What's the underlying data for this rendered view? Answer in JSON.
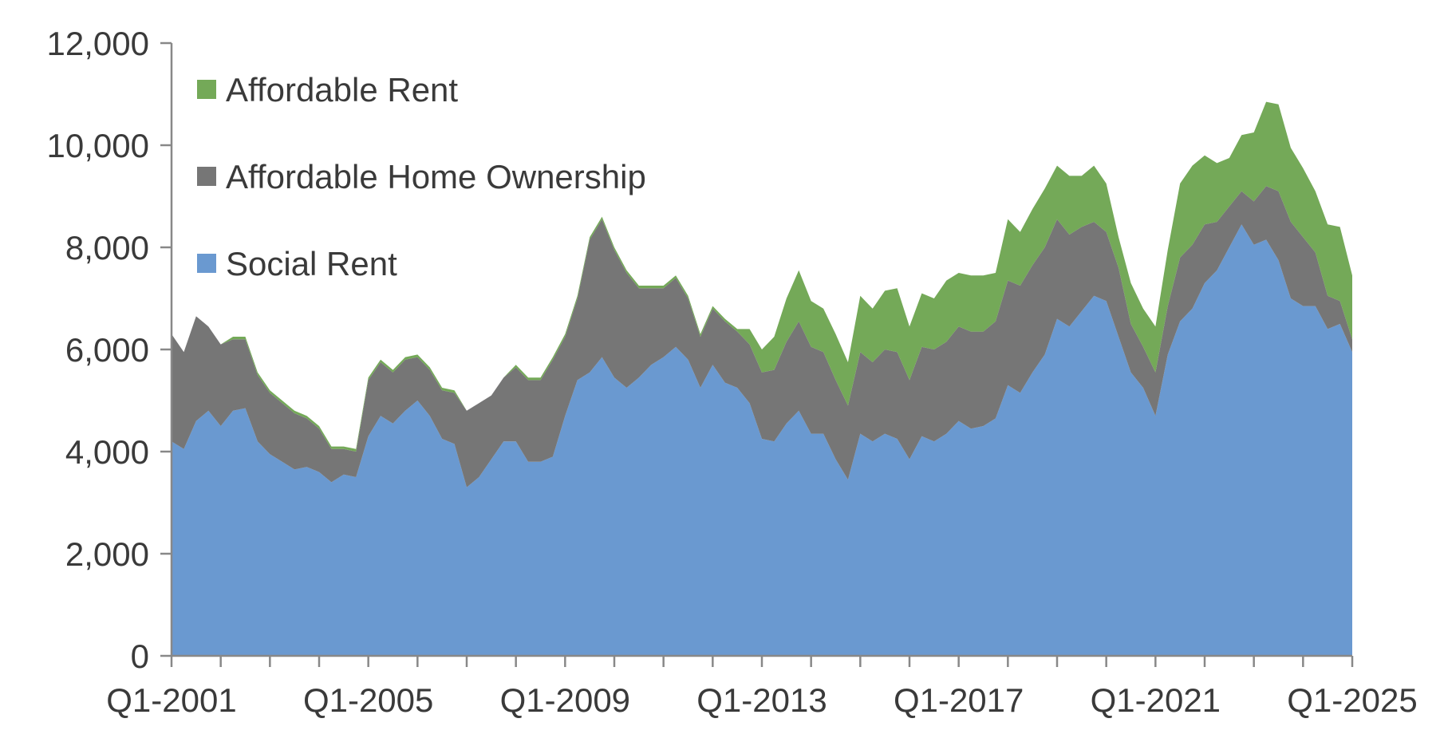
{
  "chart_data": {
    "type": "area",
    "stacked": true,
    "title": "",
    "xlabel": "",
    "ylabel": "",
    "ylim": [
      0,
      12000
    ],
    "y_ticks": [
      0,
      2000,
      4000,
      6000,
      8000,
      10000,
      12000
    ],
    "y_tick_labels": [
      "0",
      "2,000",
      "4,000",
      "6,000",
      "8,000",
      "10,000",
      "12,000"
    ],
    "x_tick_labels": [
      "Q1-2001",
      "Q1-2005",
      "Q1-2009",
      "Q1-2013",
      "Q1-2017",
      "Q1-2021",
      "Q1-2025"
    ],
    "grid": false,
    "legend_position": "top-left",
    "series": [
      {
        "name": "Social Rent",
        "color": "#6a99d0",
        "values": [
          4200,
          4050,
          4600,
          4800,
          4500,
          4800,
          4850,
          4200,
          3950,
          3800,
          3650,
          3700,
          3600,
          3400,
          3550,
          3500,
          4300,
          4700,
          4550,
          4800,
          5000,
          4700,
          4250,
          4150,
          3300,
          3500,
          3850,
          4200,
          4200,
          3800,
          3800,
          3900,
          4700,
          5400,
          5550,
          5850,
          5450,
          5250,
          5450,
          5700,
          5850,
          6050,
          5800,
          5250,
          5700,
          5350,
          5250,
          4950,
          4250,
          4200,
          4550,
          4800,
          4350,
          4350,
          3850,
          3450,
          4350,
          4200,
          4350,
          4250,
          3850,
          4300,
          4200,
          4350,
          4600,
          4450,
          4500,
          4650,
          5300,
          5150,
          5550,
          5900,
          6600,
          6450,
          6750,
          7050,
          6950,
          6250,
          5550,
          5250,
          4700,
          5900,
          6550,
          6800,
          7300,
          7550,
          8000,
          8450,
          8050,
          8150,
          7750,
          7000,
          6850,
          6850,
          6400,
          6500,
          5950
        ]
      },
      {
        "name": "Affordable Home Ownership",
        "color": "#767676",
        "values": [
          2100,
          1900,
          2050,
          1650,
          1600,
          1400,
          1350,
          1300,
          1200,
          1150,
          1100,
          950,
          850,
          650,
          500,
          500,
          1100,
          1050,
          1000,
          1000,
          850,
          900,
          950,
          1000,
          1500,
          1450,
          1250,
          1250,
          1450,
          1600,
          1600,
          1900,
          1550,
          1600,
          2600,
          2700,
          2500,
          2250,
          1750,
          1500,
          1350,
          1350,
          1200,
          1000,
          1100,
          1200,
          1100,
          1150,
          1300,
          1400,
          1600,
          1750,
          1700,
          1600,
          1550,
          1450,
          1600,
          1550,
          1650,
          1700,
          1550,
          1750,
          1800,
          1800,
          1850,
          1900,
          1850,
          1900,
          2050,
          2100,
          2100,
          2100,
          1950,
          1800,
          1650,
          1450,
          1350,
          1350,
          950,
          800,
          850,
          950,
          1250,
          1250,
          1150,
          950,
          800,
          650,
          850,
          1050,
          1350,
          1500,
          1350,
          1050,
          650,
          450,
          250
        ]
      },
      {
        "name": "Affordable Rent",
        "color": "#74a958",
        "values": [
          0,
          0,
          0,
          0,
          0,
          50,
          50,
          50,
          50,
          50,
          50,
          50,
          50,
          50,
          50,
          50,
          50,
          50,
          50,
          50,
          50,
          50,
          50,
          50,
          0,
          0,
          0,
          0,
          50,
          50,
          50,
          50,
          50,
          50,
          50,
          50,
          50,
          50,
          50,
          50,
          50,
          50,
          50,
          50,
          50,
          50,
          50,
          300,
          450,
          650,
          850,
          1000,
          900,
          850,
          900,
          850,
          1100,
          1050,
          1150,
          1250,
          1050,
          1050,
          1000,
          1200,
          1050,
          1100,
          1100,
          950,
          1200,
          1050,
          1100,
          1150,
          1050,
          1150,
          1000,
          1100,
          950,
          600,
          800,
          750,
          900,
          1100,
          1450,
          1550,
          1350,
          1150,
          950,
          1100,
          1350,
          1650,
          1700,
          1450,
          1350,
          1200,
          1400,
          1450,
          1250
        ]
      }
    ]
  },
  "legend": [
    {
      "label": "Affordable Rent",
      "color": "#74a958"
    },
    {
      "label": "Affordable Home Ownership",
      "color": "#767676"
    },
    {
      "label": "Social Rent",
      "color": "#6a99d0"
    }
  ],
  "axis_color": "#888888"
}
